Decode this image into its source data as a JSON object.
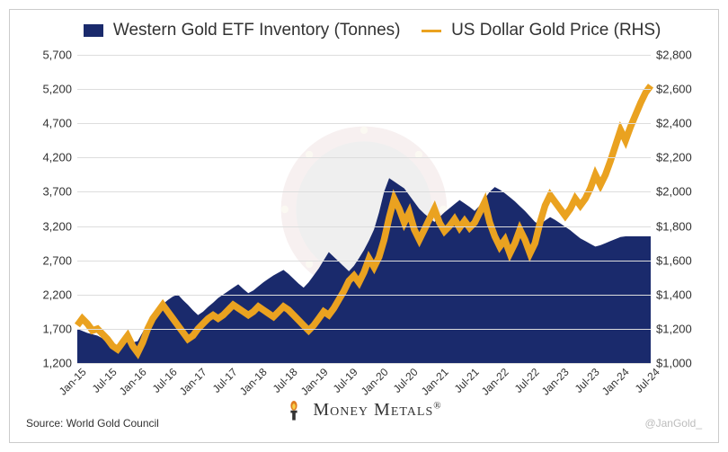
{
  "chart": {
    "type": "area+line-dual-axis",
    "background_color": "#ffffff",
    "border_color": "#cccccc",
    "grid_color": "#dddddd",
    "text_color": "#323232",
    "legend_fontsize": 19,
    "axis_label_fontsize": 13,
    "xaxis_label_fontsize": 12,
    "xaxis_label_rotation_deg": -45,
    "left_axis": {
      "min": 1200,
      "max": 5700,
      "tick_step": 500,
      "ticks": [
        1200,
        1700,
        2200,
        2700,
        3200,
        3700,
        4200,
        4700,
        5200,
        5700
      ]
    },
    "right_axis": {
      "min": 1000,
      "max": 2800,
      "tick_step": 200,
      "ticks": [
        1000,
        1200,
        1400,
        1600,
        1800,
        2000,
        2200,
        2400,
        2600,
        2800
      ],
      "prefix": "$"
    },
    "x_labels": [
      "Jan-15",
      "Jul-15",
      "Jan-16",
      "Jul-16",
      "Jan-17",
      "Jul-17",
      "Jan-18",
      "Jul-18",
      "Jan-19",
      "Jul-19",
      "Jan-20",
      "Jul-20",
      "Jan-21",
      "Jul-21",
      "Jan-22",
      "Jul-22",
      "Jan-23",
      "Jul-23",
      "Jan-24",
      "Jul-24"
    ],
    "x_n_points": 115,
    "series": {
      "area": {
        "label": "Western Gold ETF Inventory (Tonnes)",
        "color": "#1a2a6c",
        "fill_opacity": 1.0,
        "values": [
          1700,
          1670,
          1640,
          1620,
          1600,
          1560,
          1480,
          1450,
          1470,
          1530,
          1550,
          1500,
          1520,
          1650,
          1800,
          1900,
          1980,
          2060,
          2120,
          2170,
          2200,
          2120,
          2050,
          1970,
          1900,
          1950,
          2020,
          2080,
          2150,
          2200,
          2250,
          2300,
          2350,
          2280,
          2220,
          2260,
          2320,
          2380,
          2430,
          2480,
          2520,
          2560,
          2500,
          2430,
          2360,
          2300,
          2380,
          2480,
          2580,
          2700,
          2820,
          2750,
          2680,
          2610,
          2540,
          2620,
          2730,
          2850,
          2990,
          3150,
          3400,
          3700,
          3900,
          3850,
          3800,
          3750,
          3650,
          3550,
          3450,
          3380,
          3320,
          3260,
          3330,
          3400,
          3460,
          3520,
          3580,
          3530,
          3480,
          3420,
          3500,
          3600,
          3700,
          3770,
          3730,
          3680,
          3620,
          3560,
          3490,
          3420,
          3340,
          3260,
          3220,
          3280,
          3330,
          3290,
          3240,
          3190,
          3140,
          3080,
          3020,
          2980,
          2940,
          2900,
          2920,
          2950,
          2980,
          3010,
          3040,
          3050,
          3050,
          3050,
          3050,
          3050,
          3050
        ]
      },
      "line": {
        "label": "US Dollar Gold Price (RHS)",
        "color": "#eaa220",
        "line_width": 2.5,
        "values": [
          1220,
          1260,
          1230,
          1190,
          1200,
          1170,
          1140,
          1100,
          1080,
          1120,
          1160,
          1100,
          1060,
          1120,
          1200,
          1260,
          1300,
          1340,
          1300,
          1260,
          1220,
          1180,
          1140,
          1160,
          1200,
          1230,
          1260,
          1280,
          1260,
          1280,
          1310,
          1340,
          1320,
          1300,
          1280,
          1300,
          1330,
          1310,
          1290,
          1270,
          1300,
          1330,
          1310,
          1280,
          1250,
          1220,
          1190,
          1220,
          1260,
          1300,
          1280,
          1320,
          1370,
          1420,
          1480,
          1510,
          1470,
          1530,
          1610,
          1560,
          1620,
          1720,
          1850,
          1960,
          1900,
          1820,
          1880,
          1780,
          1720,
          1780,
          1840,
          1900,
          1820,
          1770,
          1800,
          1840,
          1790,
          1830,
          1790,
          1820,
          1880,
          1940,
          1820,
          1740,
          1680,
          1720,
          1640,
          1700,
          1780,
          1720,
          1640,
          1700,
          1820,
          1920,
          1980,
          1940,
          1900,
          1860,
          1900,
          1960,
          1920,
          1960,
          2020,
          2100,
          2040,
          2100,
          2180,
          2270,
          2360,
          2300,
          2380,
          2450,
          2520,
          2580,
          2620
        ]
      }
    }
  },
  "source_text": "Source: World Gold Council",
  "handle_text": "@JanGold_",
  "footer_brand": "Money Metals",
  "footer_reg": "®"
}
